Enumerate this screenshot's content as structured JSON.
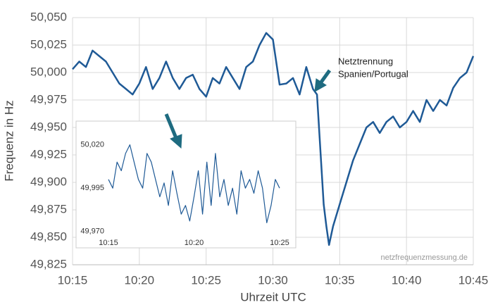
{
  "chart_data": [
    {
      "type": "line",
      "x_label": "Uhrzeit UTC",
      "y_label": "Frequenz in Hz",
      "color": "#1f5a96",
      "grid": true,
      "annotation": [
        "Netztrennung",
        "Spanien/Portugal"
      ],
      "watermark": "netzfrequenzmessung.de",
      "xlim": [
        15,
        45
      ],
      "xticks": [
        {
          "value": 15,
          "label": "10:15"
        },
        {
          "value": 20,
          "label": "10:20"
        },
        {
          "value": 25,
          "label": "10:25"
        },
        {
          "value": 30,
          "label": "10:30"
        },
        {
          "value": 35,
          "label": "10:35"
        },
        {
          "value": 40,
          "label": "10:40"
        },
        {
          "value": 45,
          "label": "10:45"
        }
      ],
      "ylim": [
        49.825,
        50.05
      ],
      "yticks": [
        {
          "value": 49.825,
          "label": "49,825"
        },
        {
          "value": 49.85,
          "label": "49,850"
        },
        {
          "value": 49.875,
          "label": "49,875"
        },
        {
          "value": 49.9,
          "label": "49,900"
        },
        {
          "value": 49.925,
          "label": "49,925"
        },
        {
          "value": 49.95,
          "label": "49,950"
        },
        {
          "value": 49.975,
          "label": "49,975"
        },
        {
          "value": 50.0,
          "label": "50,000"
        },
        {
          "value": 50.025,
          "label": "50,025"
        },
        {
          "value": 50.05,
          "label": "50,050"
        }
      ],
      "x": [
        15,
        15.5,
        16,
        16.5,
        17,
        17.5,
        18,
        18.5,
        19,
        19.5,
        20,
        20.5,
        21,
        21.5,
        22,
        22.5,
        23,
        23.5,
        24,
        24.5,
        25,
        25.5,
        26,
        26.5,
        27,
        27.5,
        28,
        28.5,
        29,
        29.5,
        30,
        30.5,
        31,
        31.5,
        32,
        32.5,
        33,
        33.3,
        33.5,
        33.8,
        34,
        34.2,
        34.5,
        35,
        35.5,
        36,
        36.5,
        37,
        37.5,
        38,
        38.5,
        39,
        39.5,
        40,
        40.5,
        41,
        41.5,
        42,
        42.5,
        43,
        43.5,
        44,
        44.5,
        45
      ],
      "values": [
        50.003,
        50.01,
        50.005,
        50.02,
        50.015,
        50.01,
        50.0,
        49.99,
        49.985,
        49.98,
        49.99,
        50.005,
        49.985,
        49.995,
        50.01,
        49.995,
        49.985,
        49.995,
        49.998,
        49.985,
        49.978,
        49.995,
        49.99,
        50.005,
        49.995,
        49.985,
        50.005,
        50.01,
        50.025,
        50.036,
        50.03,
        49.989,
        49.99,
        49.995,
        49.98,
        50.005,
        49.985,
        49.98,
        49.94,
        49.88,
        49.86,
        49.843,
        49.86,
        49.88,
        49.9,
        49.92,
        49.935,
        49.95,
        49.955,
        49.945,
        49.955,
        49.96,
        49.95,
        49.955,
        49.965,
        49.955,
        49.975,
        49.965,
        49.975,
        49.97,
        49.986,
        49.995,
        50.0,
        50.015
      ]
    },
    {
      "type": "line",
      "color": "#1f5a96",
      "xlim": [
        15,
        25
      ],
      "xticks": [
        {
          "value": 15,
          "label": "10:15"
        },
        {
          "value": 20,
          "label": "10:20"
        },
        {
          "value": 25,
          "label": "10:25"
        }
      ],
      "ylim": [
        49.965,
        50.03
      ],
      "yticks": [
        {
          "value": 49.97,
          "label": "49,970"
        },
        {
          "value": 49.995,
          "label": "49,995"
        },
        {
          "value": 50.02,
          "label": "50,020"
        }
      ],
      "x": [
        15,
        15.25,
        15.5,
        15.75,
        16,
        16.25,
        16.5,
        16.75,
        17,
        17.25,
        17.5,
        17.75,
        18,
        18.25,
        18.5,
        18.75,
        19,
        19.25,
        19.5,
        19.75,
        20,
        20.25,
        20.5,
        20.75,
        21,
        21.25,
        21.5,
        21.75,
        22,
        22.25,
        22.5,
        22.75,
        23,
        23.25,
        23.5,
        23.75,
        24,
        24.25,
        24.5,
        24.75,
        25
      ],
      "values": [
        50.0,
        49.995,
        50.01,
        50.005,
        50.015,
        50.02,
        50.01,
        50.0,
        49.995,
        50.015,
        50.01,
        50.0,
        49.99,
        49.998,
        49.985,
        50.005,
        49.992,
        49.98,
        49.985,
        49.976,
        49.99,
        50.005,
        49.98,
        50.01,
        49.985,
        50.015,
        49.99,
        50.0,
        49.985,
        49.995,
        49.98,
        50.005,
        49.995,
        50.0,
        49.992,
        50.005,
        49.995,
        49.975,
        49.985,
        50.0,
        49.995
      ]
    }
  ]
}
